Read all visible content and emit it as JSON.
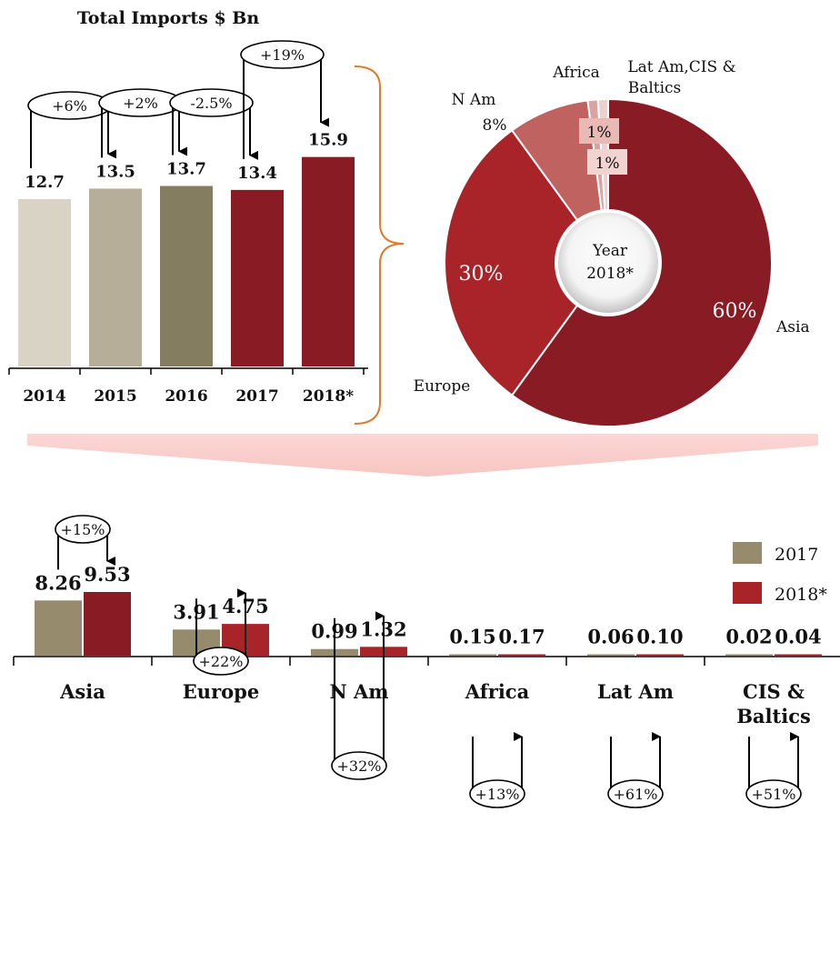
{
  "chart_data": [
    {
      "type": "bar",
      "title": "Total Imports $ Bn",
      "categories": [
        "2014",
        "2015",
        "2016",
        "2017",
        "2018*"
      ],
      "values": [
        12.7,
        13.5,
        13.7,
        13.4,
        15.9
      ],
      "value_labels": [
        "12.7",
        "13.5",
        "13.7",
        "13.4",
        "15.9"
      ],
      "colors": [
        "#d8d3c4",
        "#b6ae99",
        "#857d60",
        "#891b24",
        "#891b24"
      ],
      "changes": [
        {
          "from": 0,
          "to": 1,
          "label": "+6%"
        },
        {
          "from": 1,
          "to": 2,
          "label": "+2%"
        },
        {
          "from": 2,
          "to": 3,
          "label": "-2.5%"
        },
        {
          "from": 3,
          "to": 4,
          "label": "+19%"
        }
      ]
    },
    {
      "type": "pie",
      "center_label": [
        "Year",
        "2018*"
      ],
      "slices": [
        {
          "name": "Asia",
          "value": 60,
          "label": "60%",
          "color": "#891b24"
        },
        {
          "name": "Europe",
          "value": 30,
          "label": "30%",
          "color": "#a82428"
        },
        {
          "name": "N Am",
          "value": 8,
          "label": "8%",
          "color": "#c0625f"
        },
        {
          "name": "Africa",
          "value": 1,
          "label": "1%",
          "color": "#d9a3a1"
        },
        {
          "name": "Lat Am,CIS & Baltics",
          "value": 1,
          "label": "1%",
          "color": "#ead0cf"
        }
      ],
      "name_lines": {
        "Asia": [
          "Asia"
        ],
        "Europe": [
          "Europe"
        ],
        "N Am": [
          "N Am"
        ],
        "Africa": [
          "Africa"
        ],
        "Lat Am,CIS & Baltics": [
          "Lat Am,CIS &",
          "Baltics"
        ]
      }
    },
    {
      "type": "bar",
      "categories": [
        "Asia",
        "Europe",
        "N Am",
        "Africa",
        "Lat Am",
        "CIS & Baltics"
      ],
      "category_lines": [
        [
          "Asia"
        ],
        [
          "Europe"
        ],
        [
          "N Am"
        ],
        [
          "Africa"
        ],
        [
          "Lat Am"
        ],
        [
          "CIS &",
          "Baltics"
        ]
      ],
      "series": [
        {
          "name": "2017",
          "color": "#978b6e",
          "values": [
            8.26,
            3.91,
            0.99,
            0.15,
            0.06,
            0.02
          ],
          "labels": [
            "8.26",
            "3.91",
            "0.99",
            "0.15",
            "0.06",
            "0.02"
          ]
        },
        {
          "name": "2018*",
          "color": "#a82428",
          "values": [
            9.53,
            4.75,
            1.32,
            0.17,
            0.1,
            0.04
          ],
          "labels": [
            "9.53",
            "4.75",
            "1.32",
            "0.17",
            "0.10",
            "0.04"
          ]
        }
      ],
      "changes": [
        "+15%",
        "+22%",
        "+32%",
        "+13%",
        "+61%",
        "+51%"
      ],
      "asia_series_colors": [
        "#978b6e",
        "#891b24"
      ]
    }
  ]
}
